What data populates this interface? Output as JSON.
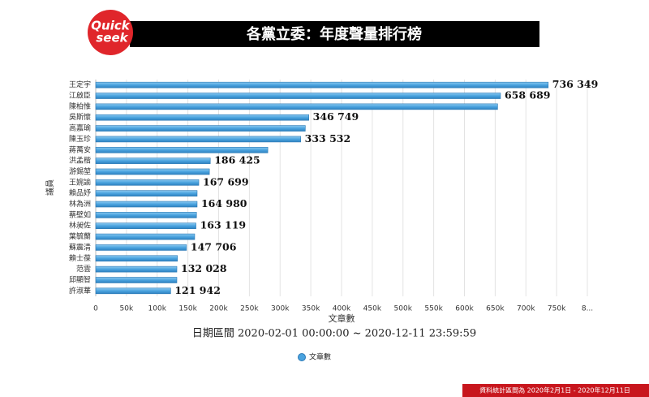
{
  "logo": {
    "line1": "Quick",
    "line2": "seek"
  },
  "footer": "資料統計區間為 2020年2月1日 - 2020年12月11日",
  "chart_data": {
    "type": "barh",
    "title": "各黨立委：年度聲量排行榜",
    "subtitle": "日期區間 2020-02-01 00:00:00 ~ 2020-12-11 23:59:59",
    "x_label": "文章數",
    "y_label": "議員",
    "categories": [
      "王定宇",
      "江啟臣",
      "陳柏惟",
      "吳斯懷",
      "高嘉瑜",
      "陳玉珍",
      "蔣萬安",
      "洪孟楷",
      "游錫堃",
      "王婉諭",
      "賴品妤",
      "林為洲",
      "蔡壁如",
      "林昶佐",
      "葉毓蘭",
      "蘇震清",
      "賴士葆",
      "范雲",
      "邱顯智",
      "許淑華"
    ],
    "series": [
      {
        "name": "文章數",
        "color": "#4aa3df",
        "values": [
          736349,
          658689,
          654000,
          346749,
          341000,
          333532,
          280000,
          186425,
          185000,
          167699,
          165000,
          164980,
          164000,
          163119,
          161000,
          147706,
          133000,
          132028,
          132000,
          121942
        ],
        "value_labels": [
          "736 349",
          "658 689",
          null,
          "346 749",
          null,
          "333 532",
          null,
          "186 425",
          null,
          "167 699",
          null,
          "164 980",
          null,
          "163 119",
          null,
          "147 706",
          null,
          "132 028",
          null,
          "121 942"
        ]
      }
    ],
    "xlim": [
      0,
      800000
    ],
    "xticks": [
      0,
      {
        "value": 50000,
        "label": "50k"
      },
      {
        "value": 100000,
        "label": "100k"
      },
      {
        "value": 150000,
        "label": "150k"
      },
      {
        "value": 200000,
        "label": "200k"
      },
      {
        "value": 250000,
        "label": "250k"
      },
      {
        "value": 300000,
        "label": "300k"
      },
      {
        "value": 350000,
        "label": "350k"
      },
      {
        "value": 400000,
        "label": "400k"
      },
      {
        "value": 450000,
        "label": "450k"
      },
      {
        "value": 500000,
        "label": "500k"
      },
      {
        "value": 550000,
        "label": "550k"
      },
      {
        "value": 600000,
        "label": "600k"
      },
      {
        "value": 650000,
        "label": "650k"
      },
      {
        "value": 700000,
        "label": "700k"
      },
      {
        "value": 750000,
        "label": "750k"
      },
      {
        "value": 800000,
        "label": "8..."
      }
    ],
    "grid": true,
    "legend": "bottom"
  }
}
